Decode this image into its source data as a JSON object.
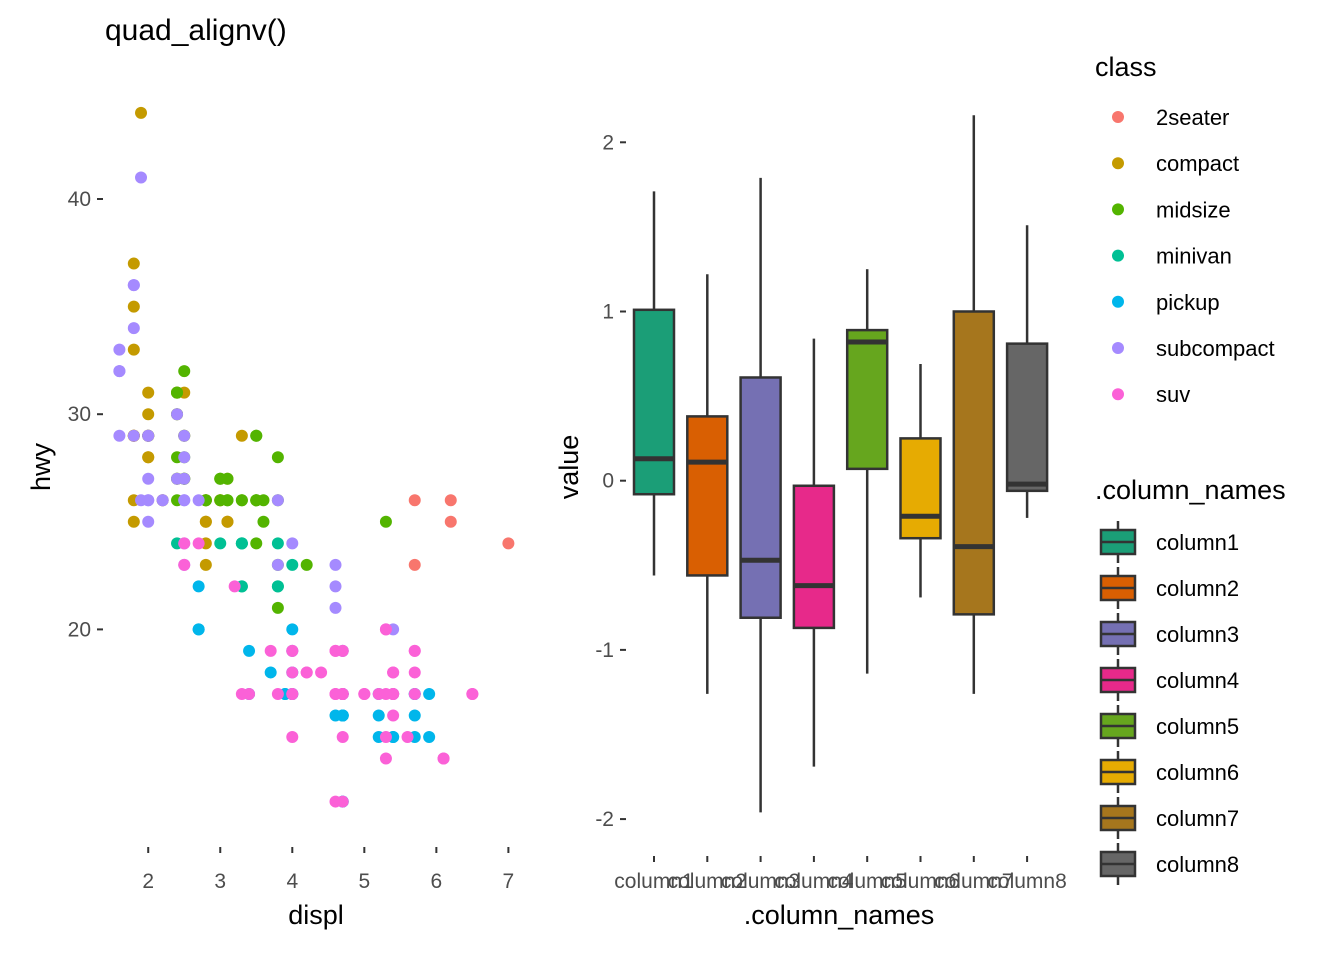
{
  "title": "quad_alignv()",
  "colors": {
    "class": {
      "2seater": "#F8766D",
      "compact": "#C49A00",
      "midsize": "#53B400",
      "minivan": "#00C094",
      "pickup": "#00B6EB",
      "subcompact": "#A58AFF",
      "suv": "#FB61D7"
    },
    "boxes": [
      "#1B9E77",
      "#D95F02",
      "#7570B3",
      "#E7298A",
      "#66A61E",
      "#E6AB02",
      "#A6761D",
      "#666666"
    ],
    "axis_text": "#4D4D4D",
    "ink": "#000000",
    "box_line": "#333333"
  },
  "chart_data": [
    {
      "type": "scatter",
      "title": "quad_alignv()",
      "xlabel": "displ",
      "ylabel": "hwy",
      "xlim": [
        1.4,
        7.3
      ],
      "ylim": [
        10.4,
        44.6
      ],
      "xticks": [
        2,
        3,
        4,
        5,
        6,
        7
      ],
      "yticks": [
        20,
        30,
        40
      ],
      "grid": false,
      "legend": {
        "title": "class",
        "position": "right",
        "entries": [
          "2seater",
          "compact",
          "midsize",
          "minivan",
          "pickup",
          "subcompact",
          "suv"
        ]
      },
      "series": [
        {
          "name": "2seater",
          "points": [
            [
              5.7,
              26
            ],
            [
              5.7,
              23
            ],
            [
              6.2,
              26
            ],
            [
              6.2,
              25
            ],
            [
              7.0,
              24
            ]
          ]
        },
        {
          "name": "compact",
          "points": [
            [
              1.8,
              29
            ],
            [
              1.8,
              29
            ],
            [
              2.0,
              31
            ],
            [
              2.0,
              30
            ],
            [
              2.8,
              26
            ],
            [
              2.8,
              26
            ],
            [
              3.1,
              27
            ],
            [
              1.8,
              26
            ],
            [
              1.8,
              25
            ],
            [
              2.0,
              28
            ],
            [
              2.0,
              28
            ],
            [
              2.8,
              25
            ],
            [
              2.8,
              25
            ],
            [
              3.1,
              25
            ],
            [
              3.1,
              25
            ],
            [
              2.2,
              26
            ],
            [
              2.2,
              26
            ],
            [
              2.4,
              27
            ],
            [
              2.4,
              30
            ],
            [
              3.0,
              26
            ],
            [
              3.0,
              26
            ],
            [
              3.3,
              29
            ],
            [
              1.8,
              29
            ],
            [
              1.8,
              29
            ],
            [
              1.8,
              37
            ],
            [
              1.8,
              35
            ],
            [
              1.8,
              33
            ],
            [
              2.0,
              29
            ],
            [
              2.0,
              29
            ],
            [
              2.5,
              29
            ],
            [
              2.5,
              27
            ],
            [
              2.4,
              31
            ],
            [
              2.4,
              31
            ],
            [
              2.8,
              23
            ],
            [
              2.8,
              24
            ],
            [
              1.9,
              44
            ],
            [
              2.0,
              29
            ],
            [
              2.5,
              31
            ],
            [
              2.0,
              29
            ]
          ]
        },
        {
          "name": "midsize",
          "points": [
            [
              2.8,
              26
            ],
            [
              3.1,
              27
            ],
            [
              4.2,
              23
            ],
            [
              2.4,
              27
            ],
            [
              2.4,
              30
            ],
            [
              3.1,
              26
            ],
            [
              3.5,
              29
            ],
            [
              3.6,
              26
            ],
            [
              2.5,
              28
            ],
            [
              2.5,
              29
            ],
            [
              3.3,
              26
            ],
            [
              3.3,
              26
            ],
            [
              2.4,
              31
            ],
            [
              2.4,
              31
            ],
            [
              2.5,
              32
            ],
            [
              2.5,
              27
            ],
            [
              3.5,
              26
            ],
            [
              3.5,
              26
            ],
            [
              3.0,
              27
            ],
            [
              3.0,
              27
            ],
            [
              3.5,
              26
            ],
            [
              3.8,
              28
            ],
            [
              3.8,
              26
            ],
            [
              3.5,
              29
            ],
            [
              3.5,
              24
            ],
            [
              5.3,
              25
            ],
            [
              2.0,
              29
            ],
            [
              2.8,
              26
            ],
            [
              3.6,
              25
            ],
            [
              2.4,
              26
            ],
            [
              2.4,
              28
            ],
            [
              3.1,
              26
            ],
            [
              3.8,
              21
            ],
            [
              3.8,
              23
            ],
            [
              2.5,
              27
            ],
            [
              3.0,
              26
            ]
          ]
        },
        {
          "name": "minivan",
          "points": [
            [
              2.4,
              24
            ],
            [
              3.0,
              24
            ],
            [
              3.3,
              22
            ],
            [
              3.3,
              22
            ],
            [
              3.3,
              24
            ],
            [
              3.3,
              24
            ],
            [
              3.3,
              24
            ],
            [
              3.8,
              22
            ],
            [
              3.8,
              24
            ],
            [
              3.8,
              22
            ],
            [
              4.0,
              23
            ]
          ]
        },
        {
          "name": "pickup",
          "points": [
            [
              2.7,
              20
            ],
            [
              2.7,
              20
            ],
            [
              3.4,
              19
            ],
            [
              3.4,
              17
            ],
            [
              4.0,
              17
            ],
            [
              4.7,
              16
            ],
            [
              4.7,
              12
            ],
            [
              4.7,
              16
            ],
            [
              5.7,
              16
            ],
            [
              5.7,
              17
            ],
            [
              5.4,
              15
            ],
            [
              5.4,
              17
            ],
            [
              3.7,
              18
            ],
            [
              3.9,
              17
            ],
            [
              3.9,
              17
            ],
            [
              4.7,
              17
            ],
            [
              4.7,
              19
            ],
            [
              4.7,
              17
            ],
            [
              5.2,
              15
            ],
            [
              5.2,
              17
            ],
            [
              5.7,
              15
            ],
            [
              5.9,
              15
            ],
            [
              4.7,
              17
            ],
            [
              4.7,
              17
            ],
            [
              4.7,
              16
            ],
            [
              4.7,
              12
            ],
            [
              4.7,
              16
            ],
            [
              5.2,
              16
            ],
            [
              5.7,
              17
            ],
            [
              5.9,
              17
            ],
            [
              4.0,
              17
            ],
            [
              4.0,
              19
            ],
            [
              4.0,
              20
            ],
            [
              4.0,
              18
            ],
            [
              4.0,
              17
            ],
            [
              4.6,
              16
            ],
            [
              5.4,
              15
            ],
            [
              2.7,
              22
            ]
          ]
        },
        {
          "name": "subcompact",
          "points": [
            [
              3.8,
              26
            ],
            [
              4.6,
              22
            ],
            [
              5.4,
              20
            ],
            [
              1.6,
              33
            ],
            [
              1.6,
              32
            ],
            [
              1.6,
              32
            ],
            [
              1.6,
              29
            ],
            [
              1.8,
              29
            ],
            [
              1.8,
              34
            ],
            [
              1.8,
              36
            ],
            [
              1.8,
              36
            ],
            [
              2.0,
              29
            ],
            [
              2.0,
              26
            ],
            [
              2.4,
              27
            ],
            [
              2.4,
              30
            ],
            [
              2.5,
              27
            ],
            [
              2.5,
              26
            ],
            [
              2.5,
              29
            ],
            [
              2.5,
              26
            ],
            [
              1.9,
              41
            ],
            [
              2.0,
              26
            ],
            [
              2.2,
              26
            ],
            [
              3.8,
              23
            ],
            [
              4.0,
              24
            ],
            [
              4.6,
              23
            ],
            [
              4.6,
              21
            ],
            [
              2.5,
              28
            ],
            [
              2.5,
              24
            ],
            [
              2.7,
              26
            ],
            [
              1.9,
              26
            ],
            [
              2.0,
              27
            ],
            [
              2.0,
              29
            ],
            [
              2.0,
              25
            ],
            [
              2.2,
              26
            ],
            [
              2.5,
              23
            ]
          ]
        },
        {
          "name": "suv",
          "points": [
            [
              5.3,
              20
            ],
            [
              5.3,
              15
            ],
            [
              5.7,
              19
            ],
            [
              6.5,
              17
            ],
            [
              4.7,
              17
            ],
            [
              3.8,
              17
            ],
            [
              4.0,
              17
            ],
            [
              4.0,
              19
            ],
            [
              4.6,
              19
            ],
            [
              5.0,
              17
            ],
            [
              4.2,
              18
            ],
            [
              4.4,
              18
            ],
            [
              4.6,
              17
            ],
            [
              5.4,
              17
            ],
            [
              5.4,
              17
            ],
            [
              5.4,
              18
            ],
            [
              4.0,
              15
            ],
            [
              4.7,
              19
            ],
            [
              4.7,
              15
            ],
            [
              5.7,
              19
            ],
            [
              6.1,
              14
            ],
            [
              4.7,
              17
            ],
            [
              5.2,
              17
            ],
            [
              4.6,
              19
            ],
            [
              5.4,
              17
            ],
            [
              5.4,
              18
            ],
            [
              4.0,
              18
            ],
            [
              5.7,
              17
            ],
            [
              4.0,
              19
            ],
            [
              4.2,
              18
            ],
            [
              4.7,
              17
            ],
            [
              2.5,
              24
            ],
            [
              2.5,
              23
            ],
            [
              3.2,
              22
            ],
            [
              2.7,
              24
            ],
            [
              3.4,
              17
            ],
            [
              4.0,
              17
            ],
            [
              4.7,
              17
            ],
            [
              5.7,
              18
            ],
            [
              5.3,
              17
            ],
            [
              5.3,
              14
            ],
            [
              5.0,
              17
            ],
            [
              4.6,
              17
            ],
            [
              5.4,
              16
            ],
            [
              3.7,
              19
            ],
            [
              4.7,
              19
            ],
            [
              6.1,
              14
            ],
            [
              4.7,
              12
            ],
            [
              5.6,
              15
            ],
            [
              5.3,
              20
            ],
            [
              3.3,
              17
            ],
            [
              6.5,
              17
            ],
            [
              4.6,
              12
            ]
          ]
        }
      ]
    },
    {
      "type": "box",
      "xlabel": ".column_names",
      "ylabel": "value",
      "ylim": [
        -2.1,
        2.25
      ],
      "yticks": [
        -2,
        -1,
        0,
        1,
        2
      ],
      "ytick_labels": [
        "-2",
        "-1",
        "0",
        "1",
        "2"
      ],
      "grid": false,
      "categories": [
        "column1",
        "column2",
        "column3",
        "column4",
        "column5",
        "column6",
        "column7",
        "column8"
      ],
      "legend": {
        "title": ".column_names",
        "position": "right",
        "entries": [
          "column1",
          "column2",
          "column3",
          "column4",
          "column5",
          "column6",
          "column7",
          "column8"
        ]
      },
      "boxes": [
        {
          "name": "column1",
          "whisker_low": -0.56,
          "q1": -0.08,
          "median": 0.13,
          "q3": 1.01,
          "whisker_high": 1.71
        },
        {
          "name": "column2",
          "whisker_low": -1.26,
          "q1": -0.56,
          "median": 0.11,
          "q3": 0.38,
          "whisker_high": 1.22
        },
        {
          "name": "column3",
          "whisker_low": -1.96,
          "q1": -0.81,
          "median": -0.47,
          "q3": 0.61,
          "whisker_high": 1.79
        },
        {
          "name": "column4",
          "whisker_low": -1.69,
          "q1": -0.87,
          "median": -0.62,
          "q3": -0.03,
          "whisker_high": 0.84
        },
        {
          "name": "column5",
          "whisker_low": -1.14,
          "q1": 0.07,
          "median": 0.82,
          "q3": 0.89,
          "whisker_high": 1.25
        },
        {
          "name": "column6",
          "whisker_low": -0.69,
          "q1": -0.34,
          "median": -0.21,
          "q3": 0.25,
          "whisker_high": 0.69
        },
        {
          "name": "column7",
          "whisker_low": -1.26,
          "q1": -0.79,
          "median": -0.39,
          "q3": 1.0,
          "whisker_high": 2.16
        },
        {
          "name": "column8",
          "whisker_low": -0.22,
          "q1": -0.06,
          "median": -0.02,
          "q3": 0.81,
          "whisker_high": 1.51
        }
      ]
    }
  ]
}
